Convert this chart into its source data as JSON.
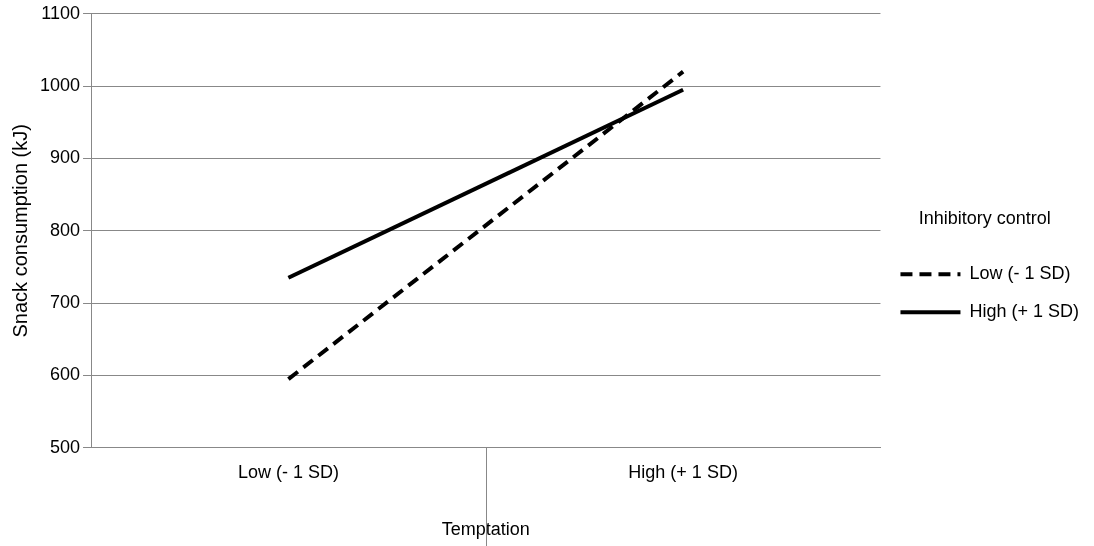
{
  "chart_data": {
    "type": "line",
    "xlabel": "Temptation",
    "ylabel": "Snack consumption (kJ)",
    "legend_title": "Inhibitory control",
    "categories": [
      "Low (- 1 SD)",
      "High (+ 1 SD)"
    ],
    "series": [
      {
        "name": "Low (- 1 SD)",
        "color": "#000000",
        "line_style": "dashed",
        "values": [
          595,
          1020
        ]
      },
      {
        "name": "High (+ 1 SD)",
        "color": "#000000",
        "line_style": "solid",
        "values": [
          735,
          995
        ]
      }
    ],
    "ylim": [
      500,
      1100
    ],
    "yticks": [
      500,
      600,
      700,
      800,
      900,
      1000,
      1100
    ],
    "grid": "y",
    "legend": "right",
    "marker": "none"
  }
}
